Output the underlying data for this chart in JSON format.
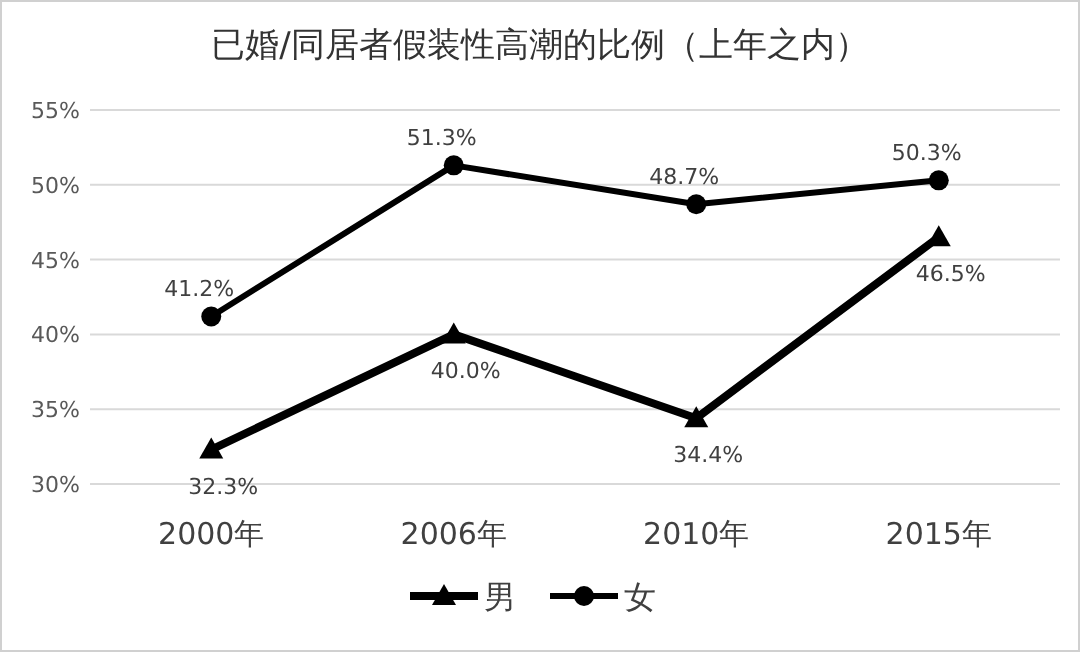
{
  "chart_data": {
    "type": "line",
    "title": "已婚/同居者假装性高潮的比例（上年之内）",
    "categories": [
      "2000年",
      "2006年",
      "2010年",
      "2015年"
    ],
    "series": [
      {
        "name": "男",
        "color": "#000000",
        "marker": "triangle",
        "values": [
          32.3,
          40.0,
          34.4,
          46.5
        ],
        "value_labels": [
          "32.3%",
          "40.0%",
          "34.4%",
          "46.5%"
        ]
      },
      {
        "name": "女",
        "color": "#000000",
        "marker": "circle",
        "values": [
          41.2,
          51.3,
          48.7,
          50.3
        ],
        "value_labels": [
          "41.2%",
          "51.3%",
          "48.7%",
          "50.3%"
        ]
      }
    ],
    "ylim": [
      30,
      55
    ],
    "yticks": [
      {
        "value": 30,
        "label": "30%"
      },
      {
        "value": 35,
        "label": "35%"
      },
      {
        "value": 40,
        "label": "40%"
      },
      {
        "value": 45,
        "label": "45%"
      },
      {
        "value": 50,
        "label": "50%"
      },
      {
        "value": 55,
        "label": "55%"
      }
    ],
    "grid": "y",
    "legend": "bottom"
  }
}
